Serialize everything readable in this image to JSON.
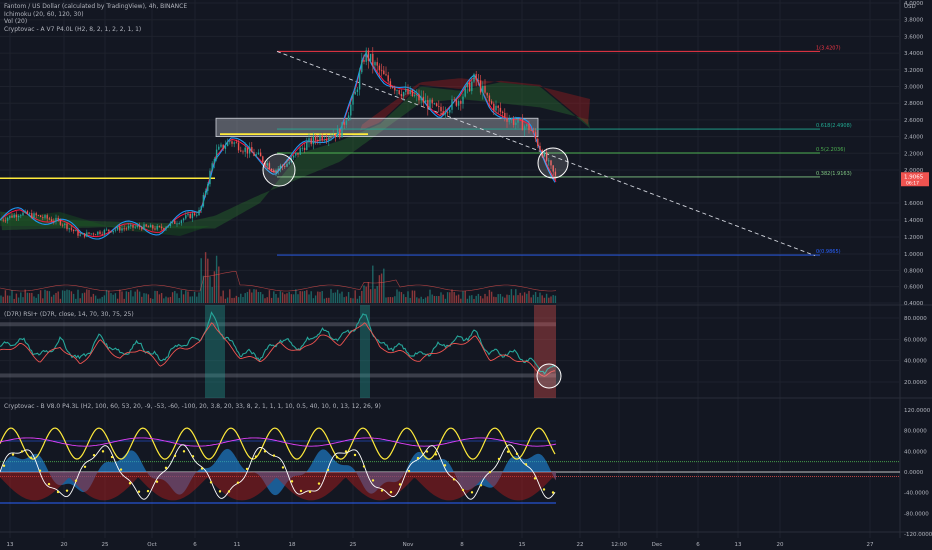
{
  "header": {
    "symbol_title": "Fantom / US Dollar (calculated by TradingView), 4h, BINANCE",
    "indicators": [
      "Ichimoku (20, 60, 120, 30)",
      "Vol (20)",
      "Cryptovac - A V7 P4.0L (H2, 8, 2, 1, 2, 2, 1, 1)"
    ],
    "currency": "USD"
  },
  "colors": {
    "background": "#131722",
    "axis_text": "#b2b5be",
    "bull": "#26a69a",
    "bear": "#ef5350",
    "yellow": "#ffeb3b",
    "fib_1": "#f23645",
    "fib_618": "#22ab94",
    "fib_5": "#4caf50",
    "fib_382": "#81c784",
    "fib_0": "#2962ff",
    "tenkan": "#2196f3",
    "kijun": "#ff1744"
  },
  "chart_data": [
    {
      "type": "line",
      "panel": "price",
      "y_ticks": [
        "4.0000",
        "3.8000",
        "3.6000",
        "3.4000",
        "3.2000",
        "3.0000",
        "2.8000",
        "2.6000",
        "2.4000",
        "2.2000",
        "2.0000",
        "1.6000",
        "1.4000",
        "1.2000",
        "1.0000",
        "0.8000",
        "0.6000",
        "0.4000"
      ],
      "ylim": [
        0.38,
        4.1
      ],
      "last_price": "1.9065",
      "last_price_sub": "06:17",
      "fib_levels": [
        {
          "label": "1(3.4207)",
          "value": 3.4207
        },
        {
          "label": "0.618(2.4908)",
          "value": 2.4908
        },
        {
          "label": "0.5(2.2036)",
          "value": 2.2036
        },
        {
          "label": "0.382(1.9163)",
          "value": 1.9163
        },
        {
          "label": "0(0.9865)",
          "value": 0.9865
        }
      ],
      "price_path": [
        [
          0,
          1.4
        ],
        [
          20,
          1.48
        ],
        [
          40,
          1.44
        ],
        [
          60,
          1.38
        ],
        [
          80,
          1.22
        ],
        [
          100,
          1.26
        ],
        [
          120,
          1.3
        ],
        [
          140,
          1.32
        ],
        [
          160,
          1.3
        ],
        [
          180,
          1.4
        ],
        [
          200,
          1.5
        ],
        [
          215,
          2.2
        ],
        [
          230,
          2.35
        ],
        [
          245,
          2.25
        ],
        [
          260,
          2.15
        ],
        [
          275,
          2.0
        ],
        [
          290,
          2.1
        ],
        [
          305,
          2.3
        ],
        [
          320,
          2.4
        ],
        [
          340,
          2.45
        ],
        [
          355,
          2.9
        ],
        [
          365,
          3.4
        ],
        [
          375,
          3.25
        ],
        [
          385,
          3.1
        ],
        [
          400,
          2.95
        ],
        [
          420,
          2.85
        ],
        [
          440,
          2.7
        ],
        [
          460,
          2.85
        ],
        [
          475,
          3.1
        ],
        [
          490,
          2.8
        ],
        [
          510,
          2.6
        ],
        [
          530,
          2.5
        ],
        [
          545,
          2.15
        ],
        [
          556,
          1.9
        ]
      ]
    },
    {
      "type": "bar",
      "panel": "volume",
      "note": "Vol (20)"
    },
    {
      "type": "line",
      "panel": "rsi",
      "title": "(D7R) RSI+ (D7R, close, 14, 70, 30, 75, 25)",
      "y_ticks": [
        "80.0000",
        "60.0000",
        "40.0000",
        "20.0000"
      ],
      "ylim": [
        10,
        90
      ],
      "series_path": [
        [
          0,
          52
        ],
        [
          20,
          60
        ],
        [
          40,
          44
        ],
        [
          60,
          58
        ],
        [
          80,
          40
        ],
        [
          100,
          62
        ],
        [
          120,
          46
        ],
        [
          140,
          56
        ],
        [
          160,
          40
        ],
        [
          180,
          55
        ],
        [
          200,
          60
        ],
        [
          212,
          82
        ],
        [
          225,
          62
        ],
        [
          240,
          48
        ],
        [
          260,
          44
        ],
        [
          280,
          60
        ],
        [
          300,
          52
        ],
        [
          320,
          68
        ],
        [
          340,
          60
        ],
        [
          355,
          72
        ],
        [
          365,
          82
        ],
        [
          380,
          55
        ],
        [
          400,
          52
        ],
        [
          420,
          44
        ],
        [
          440,
          54
        ],
        [
          460,
          60
        ],
        [
          475,
          66
        ],
        [
          490,
          46
        ],
        [
          510,
          48
        ],
        [
          530,
          40
        ],
        [
          545,
          30
        ],
        [
          556,
          33
        ]
      ]
    },
    {
      "type": "line",
      "panel": "oscillator",
      "title": "Cryptovac - B V8.0 P4.3L (H2, 100, 60, 53, 20, -9, -53, -60, -100, 20, 3.8, 20, 33, 8, 2, 1, 1, 1, 10, 0.5, 40, 10, 0, 13, 12, 26, 9)",
      "y_ticks": [
        "120.0000",
        "80.0000",
        "40.0000",
        "0.0000",
        "-40.0000",
        "-80.0000",
        "-120.0000"
      ],
      "ylim": [
        -125,
        125
      ]
    }
  ],
  "x_axis": {
    "labels": [
      "13",
      "20",
      "25",
      "Oct",
      "6",
      "11",
      "18",
      "25",
      "Nov",
      "8",
      "15",
      "22",
      "12:00",
      "Dec",
      "6",
      "13",
      "20",
      "27"
    ]
  }
}
